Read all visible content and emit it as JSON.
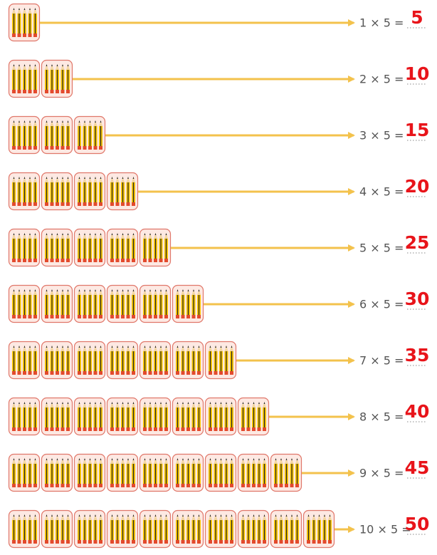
{
  "rows": [
    {
      "expression": "1 × 5 =",
      "answer": "5"
    },
    {
      "expression": "2 × 5 =",
      "answer": "10"
    },
    {
      "expression": "3 × 5 =",
      "answer": "15"
    },
    {
      "expression": "4 × 5 =",
      "answer": "20"
    },
    {
      "expression": "5 × 5 =",
      "answer": "25"
    },
    {
      "expression": "6 × 5 =",
      "answer": "30"
    },
    {
      "expression": "7 × 5 =",
      "answer": "35"
    },
    {
      "expression": "8 × 5 =",
      "answer": "40"
    },
    {
      "expression": "9 × 5 =",
      "answer": "45"
    },
    {
      "expression": "10 × 5 =",
      "answer": "50"
    }
  ]
}
